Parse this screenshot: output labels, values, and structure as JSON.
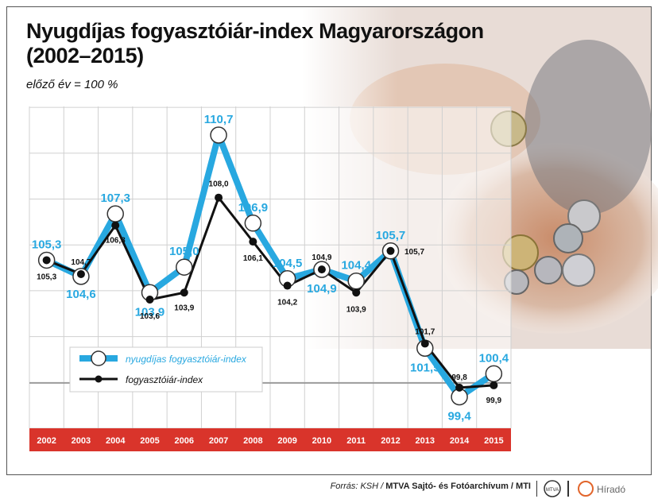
{
  "title_line1": "Nyugdíjas fogyasztóiár-index Magyarországon",
  "title_line2": "(2002–2015)",
  "subtitle": "előző év = 100 %",
  "footer": {
    "source_prefix": "Forrás: KSH / ",
    "source_bold": "MTVA Sajtó- és Fotóarchívum / MTI",
    "logo1": "MTVA",
    "logo2": "Híradó"
  },
  "colors": {
    "pension_series": "#28a8e0",
    "general_series": "#111111",
    "year_bar": "#d9342b",
    "grid": "#d0d0d0"
  },
  "chart_data": {
    "type": "line",
    "x": [
      "2002",
      "2003",
      "2004",
      "2005",
      "2006",
      "2007",
      "2008",
      "2009",
      "2010",
      "2011",
      "2012",
      "2013",
      "2014",
      "2015"
    ],
    "series": [
      {
        "name": "nyugdíjas fogyasztóiár-index",
        "values": [
          105.3,
          104.6,
          107.3,
          103.9,
          105.0,
          110.7,
          106.9,
          104.5,
          104.9,
          104.4,
          105.7,
          101.5,
          99.4,
          100.4
        ],
        "labels": [
          "105,3",
          "104,6",
          "107,3",
          "103,9",
          "105,0",
          "110,7",
          "106,9",
          "104,5",
          "104,9",
          "104,4",
          "105,7",
          "101,5",
          "99,4",
          "100,4"
        ]
      },
      {
        "name": "fogyasztóiár-index",
        "values": [
          105.3,
          104.7,
          106.8,
          103.6,
          103.9,
          108.0,
          106.1,
          104.2,
          104.9,
          103.9,
          105.7,
          101.7,
          99.8,
          99.9
        ],
        "labels": [
          "105,3",
          "104,7",
          "106,8",
          "103,6",
          "103,9",
          "108,0",
          "106,1",
          "104,2",
          "104,9",
          "103,9",
          "105,7",
          "101,7",
          "99,8",
          "99,9"
        ]
      }
    ],
    "reference_line": 100,
    "grid": true,
    "legend": "bottom-left"
  }
}
